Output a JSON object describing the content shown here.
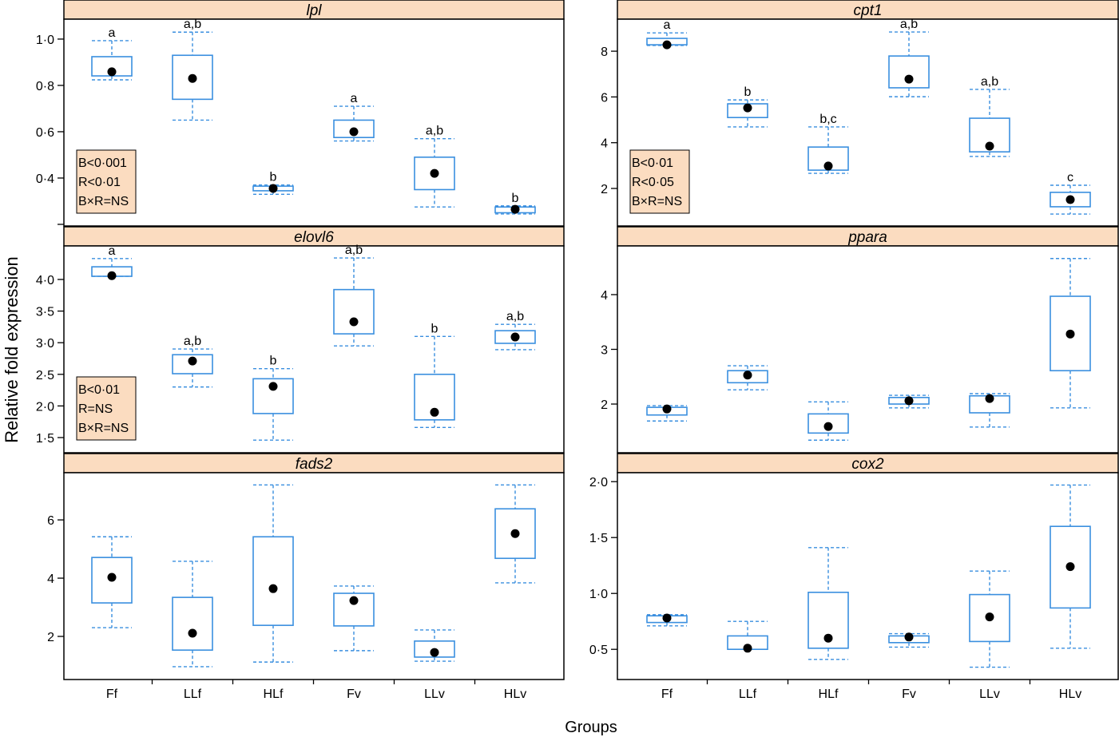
{
  "chart_data": {
    "type": "boxplot",
    "xlabel": "Groups",
    "ylabel": "Relative fold expression",
    "categories": [
      "Ff",
      "LLf",
      "HLf",
      "Fv",
      "LLv",
      "HLv"
    ],
    "colors": {
      "box": "#3a8fdf",
      "median_dot": "#000000",
      "strip": "#fbdcc0"
    },
    "panels": [
      {
        "title": "lpl",
        "ylim": [
          0.193,
          1.086
        ],
        "ticks": [
          {
            "v": 1.0,
            "label": "1·0"
          },
          {
            "v": 0.8,
            "label": "0·8"
          },
          {
            "v": 0.6,
            "label": "0·6"
          },
          {
            "v": 0.4,
            "label": "0·4"
          },
          {
            "v": 0.2,
            "label": ""
          }
        ],
        "stats": [
          "B<0·001",
          "R<0·01",
          "B×R=NS"
        ],
        "letters": [
          "a",
          "a,b",
          "b",
          "a",
          "a,b",
          "b"
        ],
        "boxes": [
          [
            0.824,
            0.841,
            0.859,
            0.924,
            0.993
          ],
          [
            0.65,
            0.74,
            0.83,
            0.93,
            1.03
          ],
          [
            0.33,
            0.345,
            0.355,
            0.365,
            0.37
          ],
          [
            0.56,
            0.575,
            0.6,
            0.65,
            0.71
          ],
          [
            0.275,
            0.35,
            0.42,
            0.49,
            0.57
          ],
          [
            0.245,
            0.25,
            0.265,
            0.275,
            0.28
          ]
        ]
      },
      {
        "title": "cpt1",
        "ylim": [
          0.36,
          9.4
        ],
        "ticks": [
          {
            "v": 8,
            "label": "8"
          },
          {
            "v": 6,
            "label": "6"
          },
          {
            "v": 4,
            "label": "4"
          },
          {
            "v": 2,
            "label": "2"
          }
        ],
        "stats": [
          "B<0·01",
          "R<0·05",
          "B×R=NS"
        ],
        "letters": [
          "a",
          "b",
          "b,c",
          "a,b",
          "a,b",
          "c"
        ],
        "boxes": [
          [
            8.25,
            8.28,
            8.28,
            8.56,
            8.8
          ],
          [
            4.69,
            5.1,
            5.52,
            5.7,
            5.87
          ],
          [
            2.66,
            2.8,
            2.98,
            3.81,
            4.69
          ],
          [
            6.01,
            6.4,
            6.78,
            7.79,
            8.84
          ],
          [
            3.4,
            3.6,
            3.85,
            5.07,
            6.33
          ],
          [
            0.88,
            1.2,
            1.51,
            1.83,
            2.14
          ]
        ]
      },
      {
        "title": "elovl6",
        "ylim": [
          1.26,
          4.53
        ],
        "ticks": [
          {
            "v": 4.0,
            "label": "4·0"
          },
          {
            "v": 3.5,
            "label": "3·5"
          },
          {
            "v": 3.0,
            "label": "3·0"
          },
          {
            "v": 2.5,
            "label": "2·5"
          },
          {
            "v": 2.0,
            "label": "2·0"
          },
          {
            "v": 1.5,
            "label": "1·5"
          }
        ],
        "stats": [
          "B<0·01",
          "R=NS",
          "B×R=NS"
        ],
        "letters": [
          "a",
          "a,b",
          "b",
          "a,b",
          "b",
          "a,b"
        ],
        "boxes": [
          [
            4.05,
            4.05,
            4.06,
            4.2,
            4.33
          ],
          [
            2.3,
            2.51,
            2.71,
            2.81,
            2.9
          ],
          [
            1.46,
            1.88,
            2.31,
            2.43,
            2.59
          ],
          [
            2.95,
            3.14,
            3.33,
            3.84,
            4.34
          ],
          [
            1.66,
            1.78,
            1.9,
            2.5,
            3.1
          ],
          [
            2.89,
            2.99,
            3.09,
            3.19,
            3.29
          ]
        ]
      },
      {
        "title": "ppara",
        "ylim": [
          1.11,
          4.89
        ],
        "ticks": [
          {
            "v": 4,
            "label": "4"
          },
          {
            "v": 3,
            "label": "3"
          },
          {
            "v": 2,
            "label": "2"
          }
        ],
        "stats": [],
        "letters": [],
        "boxes": [
          [
            1.69,
            1.8,
            1.91,
            1.94,
            1.97
          ],
          [
            2.26,
            2.39,
            2.53,
            2.61,
            2.7
          ],
          [
            1.34,
            1.47,
            1.59,
            1.82,
            2.04
          ],
          [
            1.93,
            2.0,
            2.06,
            2.12,
            2.16
          ],
          [
            1.58,
            1.84,
            2.1,
            2.15,
            2.19
          ],
          [
            1.93,
            2.61,
            3.28,
            3.97,
            4.66
          ]
        ]
      },
      {
        "title": "fads2",
        "ylim": [
          0.52,
          7.62
        ],
        "ticks": [
          {
            "v": 6,
            "label": "6"
          },
          {
            "v": 4,
            "label": "4"
          },
          {
            "v": 2,
            "label": "2"
          }
        ],
        "stats": [],
        "letters": [],
        "boxes": [
          [
            2.3,
            3.15,
            4.03,
            4.71,
            5.42
          ],
          [
            0.96,
            1.53,
            2.11,
            3.34,
            4.58
          ],
          [
            1.12,
            2.38,
            3.64,
            5.42,
            7.2
          ],
          [
            1.51,
            2.36,
            3.23,
            3.48,
            3.73
          ],
          [
            1.15,
            1.29,
            1.45,
            1.84,
            2.22
          ],
          [
            3.84,
            4.68,
            5.53,
            6.38,
            7.2
          ]
        ]
      },
      {
        "title": "cox2",
        "ylim": [
          0.23,
          2.08
        ],
        "ticks": [
          {
            "v": 2.0,
            "label": "2·0"
          },
          {
            "v": 1.5,
            "label": "1·5"
          },
          {
            "v": 1.0,
            "label": "1·0"
          },
          {
            "v": 0.5,
            "label": "0·5"
          }
        ],
        "stats": [],
        "letters": [],
        "boxes": [
          [
            0.71,
            0.74,
            0.78,
            0.8,
            0.81
          ],
          [
            0.5,
            0.5,
            0.51,
            0.62,
            0.75
          ],
          [
            0.41,
            0.51,
            0.6,
            1.01,
            1.41
          ],
          [
            0.52,
            0.56,
            0.61,
            0.62,
            0.64
          ],
          [
            0.34,
            0.57,
            0.79,
            0.99,
            1.2
          ],
          [
            0.51,
            0.87,
            1.24,
            1.6,
            1.97
          ]
        ]
      }
    ]
  }
}
